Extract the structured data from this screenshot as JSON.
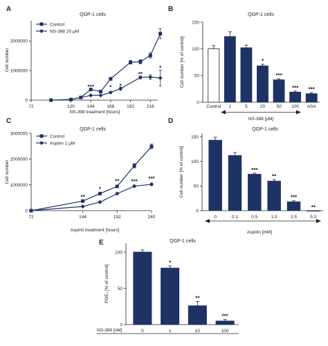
{
  "chart_data": [
    {
      "panel": "A",
      "type": "line",
      "title": "QGP-1 cells",
      "xlabel": "NS-398 treatment [hours]",
      "ylabel": "Cell number",
      "xlim": [
        72,
        240
      ],
      "ylim": [
        0,
        2500000
      ],
      "x_ticks": [
        72,
        120,
        144,
        168,
        192,
        216
      ],
      "y_ticks": [
        {
          "value": 0,
          "label": "0"
        },
        {
          "value": 1000000,
          "label": "1000000"
        },
        {
          "value": 2000000,
          "label": "2000000"
        }
      ],
      "legend_position": "top-left",
      "series": [
        {
          "name": "Control",
          "marker": "square",
          "points": [
            [
              96,
              0
            ],
            [
              120,
              20000
            ],
            [
              132,
              90000
            ],
            [
              144,
              360000
            ],
            [
              156,
              290000
            ],
            [
              168,
              720000
            ],
            [
              192,
              1280000
            ],
            [
              204,
              1300000
            ],
            [
              216,
              1510000
            ],
            [
              228,
              2250000
            ]
          ],
          "errors": [
            0,
            0,
            20000,
            30000,
            30000,
            50000,
            60000,
            70000,
            90000,
            170000
          ]
        },
        {
          "name": "NS-398 20 μM",
          "marker": "diamond",
          "points": [
            [
              96,
              0
            ],
            [
              120,
              20000
            ],
            [
              144,
              160000
            ],
            [
              156,
              160000
            ],
            [
              168,
              260000
            ],
            [
              180,
              390000
            ],
            [
              204,
              770000
            ],
            [
              216,
              780000
            ],
            [
              228,
              750000
            ]
          ],
          "errors": [
            0,
            0,
            20000,
            20000,
            30000,
            60000,
            50000,
            80000,
            270000
          ]
        }
      ],
      "annotations": [
        {
          "x": 144,
          "y": 380000,
          "text": "***"
        },
        {
          "x": 168,
          "y": 370000,
          "text": "*"
        },
        {
          "x": 180,
          "y": 420000,
          "text": "*"
        },
        {
          "x": 204,
          "y": 820000,
          "text": "**"
        },
        {
          "x": 228,
          "y": 1030000,
          "text": "*"
        }
      ]
    },
    {
      "panel": "B",
      "type": "bar",
      "title": "QGP-1 cells",
      "ylabel": "Cell number [% of control]",
      "ylim": [
        0,
        150
      ],
      "y_ticks": [
        0,
        50,
        100,
        150
      ],
      "categories": [
        "Control",
        "1",
        "5",
        "20",
        "50",
        "100",
        "ASA"
      ],
      "values": [
        100,
        123,
        102,
        68,
        42,
        19,
        16
      ],
      "errors": [
        6,
        9,
        5,
        3,
        2,
        2,
        2
      ],
      "bar_fill": [
        "white",
        "dark",
        "dark",
        "dark",
        "dark",
        "dark",
        "dark"
      ],
      "significance": [
        "",
        "",
        "",
        "*",
        "***",
        "***",
        "***"
      ],
      "group_label": "NS-398 [μM]"
    },
    {
      "panel": "C",
      "type": "line",
      "title": "QGP-1 cells",
      "xlabel": "Aspirin treatment [hours]",
      "ylabel": "Cell number",
      "xlim": [
        72,
        240
      ],
      "ylim": [
        0,
        3000000
      ],
      "x_ticks": [
        72,
        144,
        192,
        240
      ],
      "y_ticks": [
        {
          "value": 0,
          "label": "0"
        },
        {
          "value": 1000000,
          "label": "1000000"
        },
        {
          "value": 2000000,
          "label": "2000000"
        },
        {
          "value": 3000000,
          "label": "3000000"
        }
      ],
      "legend_position": "top-left",
      "series": [
        {
          "name": "Control",
          "marker": "square",
          "points": [
            [
              72,
              0
            ],
            [
              144,
              370000
            ],
            [
              168,
              660000
            ],
            [
              192,
              940000
            ],
            [
              216,
              1740000
            ],
            [
              240,
              2490000
            ]
          ],
          "errors": [
            0,
            20000,
            30000,
            50000,
            80000,
            90000
          ]
        },
        {
          "name": "Aspirin 1 μM",
          "marker": "diamond",
          "points": [
            [
              72,
              0
            ],
            [
              144,
              160000
            ],
            [
              168,
              330000
            ],
            [
              192,
              660000
            ],
            [
              216,
              950000
            ],
            [
              240,
              1020000
            ]
          ],
          "errors": [
            0,
            20000,
            30000,
            40000,
            40000,
            50000
          ]
        }
      ],
      "annotations": [
        {
          "x": 144,
          "y": 460000,
          "text": "**"
        },
        {
          "x": 168,
          "y": 770000,
          "text": "*"
        },
        {
          "x": 192,
          "y": 1070000,
          "text": "**"
        },
        {
          "x": 216,
          "y": 1060000,
          "text": "***"
        },
        {
          "x": 240,
          "y": 1160000,
          "text": "***"
        }
      ]
    },
    {
      "panel": "D",
      "type": "bar",
      "title": "QGP-1 cells",
      "ylabel": "Cell number [% of control]",
      "xlabel": "Aspirin [mM]",
      "ylim": [
        0,
        150
      ],
      "y_ticks": [
        0,
        50,
        100,
        150
      ],
      "categories": [
        "0",
        "0.1",
        "0.5",
        "1.0",
        "2.5",
        "5.0"
      ],
      "values": [
        143,
        112,
        74,
        60,
        18,
        0
      ],
      "errors": [
        6,
        6,
        2,
        3,
        2,
        0
      ],
      "significance": [
        "",
        "",
        "***",
        "**",
        "***",
        "**"
      ]
    },
    {
      "panel": "E",
      "type": "bar",
      "title": "QGP-1 cells",
      "ylabel": "PGE₂ [% of control]",
      "ylim": [
        0,
        100
      ],
      "y_ticks": [
        0,
        50,
        100
      ],
      "row_label": "NS-398 [nM]",
      "categories": [
        "0",
        "1",
        "10",
        "100"
      ],
      "values": [
        100,
        78,
        26,
        5
      ],
      "errors": [
        3,
        3,
        6,
        2
      ],
      "significance": [
        "",
        "*",
        "**",
        "***"
      ]
    }
  ]
}
